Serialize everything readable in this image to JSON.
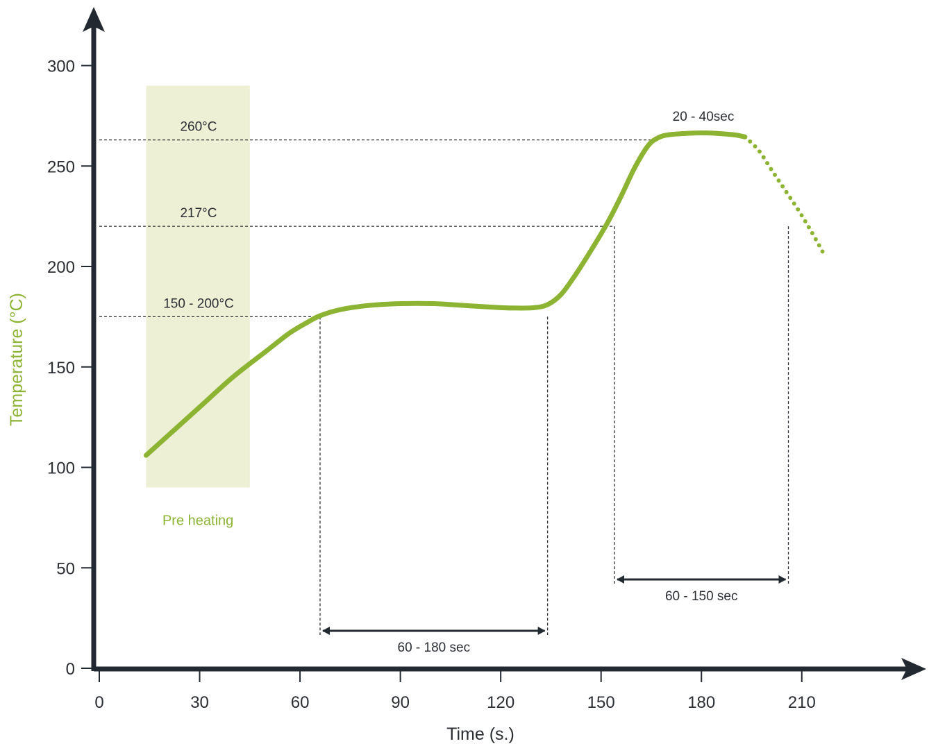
{
  "colors": {
    "axis": "#232930",
    "curve": "#8cb332",
    "zone": "#eef0d6",
    "guide": "#2b2e33",
    "ylabel": "#8cb332"
  },
  "chart_data": {
    "type": "line",
    "title": "",
    "xlabel": "Time (s.)",
    "ylabel": "Temperature (°C)",
    "xlim": [
      0,
      240
    ],
    "ylim": [
      0,
      320
    ],
    "xticks": [
      0,
      30,
      60,
      90,
      120,
      150,
      180,
      210
    ],
    "yticks": [
      0,
      50,
      100,
      150,
      200,
      250,
      300
    ],
    "grid": false,
    "legend": "none",
    "series": [
      {
        "style": "solid",
        "x": [
          14,
          20,
          30,
          40,
          50,
          57,
          62,
          66,
          72,
          80,
          90,
          100,
          110,
          120,
          125,
          130,
          134,
          138,
          142,
          147,
          152,
          156,
          160,
          164,
          167,
          170,
          175,
          180,
          185,
          190,
          193
        ],
        "y": [
          106,
          115,
          130,
          145,
          158,
          167,
          172,
          175.5,
          178.5,
          180.5,
          181.5,
          181.5,
          180.5,
          179.5,
          179.3,
          179.5,
          181,
          186,
          195,
          208,
          222,
          235,
          249,
          260,
          264,
          265.5,
          266.2,
          266.5,
          266.2,
          265.5,
          264.5
        ]
      },
      {
        "style": "dotted",
        "x": [
          193,
          197,
          201,
          205,
          209,
          213,
          217
        ],
        "y": [
          264.5,
          258,
          248,
          238,
          228,
          217,
          205
        ]
      }
    ],
    "reference_lines": [
      {
        "axis": "y",
        "value": 263,
        "label": "260°C"
      },
      {
        "axis": "y",
        "value": 220,
        "label": "217°C"
      },
      {
        "axis": "y",
        "value": 175,
        "label": "150 - 200°C"
      }
    ],
    "preheat_zone": {
      "x": [
        14,
        45
      ],
      "y": [
        90,
        290
      ],
      "label": "Pre heating"
    },
    "durations": [
      {
        "from": 66,
        "to": 134,
        "label": "60 - 180 sec",
        "line_top": 175
      },
      {
        "from": 154,
        "to": 206,
        "label": "60 - 150 sec",
        "line_top": 220
      }
    ],
    "peak_label": "20 - 40sec"
  }
}
